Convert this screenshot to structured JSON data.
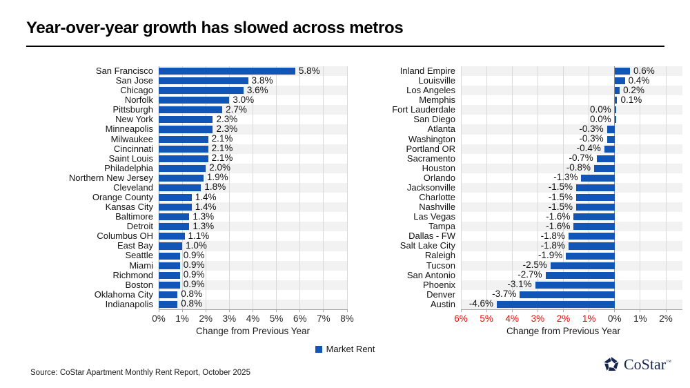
{
  "title": "Year-over-year growth has slowed across metros",
  "footer": {
    "source": "Source: CoStar Apartment Monthly Rent Report, October 2025"
  },
  "logo": {
    "text": "CoStar",
    "tm": "™",
    "color": "#17254E"
  },
  "legend": {
    "label": "Market Rent",
    "color": "#1155B7"
  },
  "colors": {
    "bar": "#1155B7",
    "band": "#F2F2F2",
    "grid": "#D9D9D9",
    "axis": "#A6A6A6",
    "zero_line": "#8C8C8C",
    "negative_tick": "#FF0000",
    "tick_label": "#262626"
  },
  "chart_data": [
    {
      "type": "bar",
      "orientation": "horizontal",
      "title": "",
      "categories": [
        "San Francisco",
        "San Jose",
        "Chicago",
        "Norfolk",
        "Pittsburgh",
        "New York",
        "Minneapolis",
        "Milwaukee",
        "Cincinnati",
        "Saint Louis",
        "Philadelphia",
        "Northern New Jersey",
        "Cleveland",
        "Orange County",
        "Kansas City",
        "Baltimore",
        "Detroit",
        "Columbus OH",
        "East Bay",
        "Seattle",
        "Miami",
        "Richmond",
        "Boston",
        "Oklahoma City",
        "Indianapolis"
      ],
      "values": [
        5.8,
        3.8,
        3.6,
        3.0,
        2.7,
        2.3,
        2.3,
        2.1,
        2.1,
        2.1,
        2.0,
        1.9,
        1.8,
        1.4,
        1.4,
        1.3,
        1.3,
        1.1,
        1.0,
        0.9,
        0.9,
        0.9,
        0.9,
        0.8,
        0.8
      ],
      "xlabel": "Change from Previous Year",
      "xlim": [
        0,
        8
      ],
      "xticks": [
        0,
        1,
        2,
        3,
        4,
        5,
        6,
        7,
        8
      ],
      "xtick_labels": [
        "0%",
        "1%",
        "2%",
        "3%",
        "4%",
        "5%",
        "6%",
        "7%",
        "8%"
      ],
      "negative_ticks_red": false,
      "grid": true,
      "legend_entry": "Market Rent"
    },
    {
      "type": "bar",
      "orientation": "horizontal",
      "title": "",
      "categories": [
        "Inland Empire",
        "Louisville",
        "Los Angeles",
        "Memphis",
        "Fort Lauderdale",
        "San Diego",
        "Atlanta",
        "Washington",
        "Portland OR",
        "Sacramento",
        "Houston",
        "Orlando",
        "Jacksonville",
        "Charlotte",
        "Nashville",
        "Las Vegas",
        "Tampa",
        "Dallas - FW",
        "Salt Lake City",
        "Raleigh",
        "Tucson",
        "San Antonio",
        "Phoenix",
        "Denver",
        "Austin"
      ],
      "values": [
        0.6,
        0.4,
        0.2,
        0.1,
        0.0,
        0.0,
        -0.3,
        -0.3,
        -0.4,
        -0.7,
        -0.8,
        -1.3,
        -1.5,
        -1.5,
        -1.5,
        -1.6,
        -1.6,
        -1.8,
        -1.8,
        -1.9,
        -2.5,
        -2.7,
        -3.1,
        -3.7,
        -4.6
      ],
      "xlabel": "Change from Previous Year",
      "xlim": [
        -6,
        2
      ],
      "xticks": [
        -6,
        -5,
        -4,
        -3,
        -2,
        -1,
        0,
        1,
        2
      ],
      "xtick_labels": [
        "6%",
        "5%",
        "4%",
        "3%",
        "2%",
        "1%",
        "0%",
        "1%",
        "2%"
      ],
      "negative_ticks_red": true,
      "grid": true,
      "legend_entry": "Market Rent"
    }
  ]
}
